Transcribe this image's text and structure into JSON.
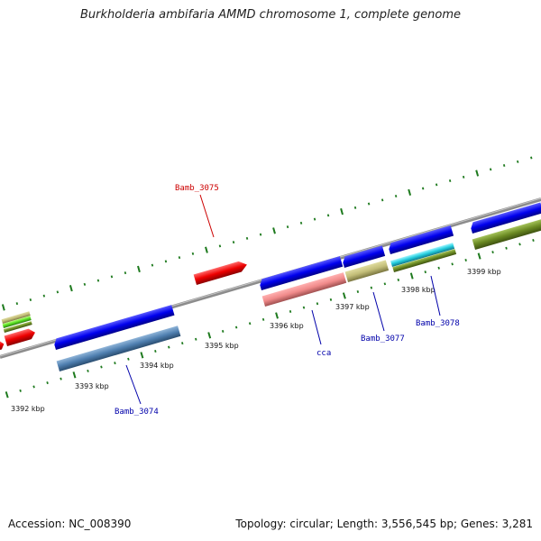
{
  "title": "Burkholderia ambifaria AMMD chromosome 1, complete genome",
  "footer": {
    "accession": "Accession: NC_008390",
    "topology": "Topology: circular; Length: 3,556,545 bp; Genes: 3,281"
  },
  "colors": {
    "backbone": "#8c8c8c",
    "ticks": "#1e7a1e",
    "label_red": "#cc0000",
    "label_blue": "#0000aa"
  },
  "kbp_labels": [
    "3392 kbp",
    "3393 kbp",
    "3394 kbp",
    "3395 kbp",
    "3396 kbp",
    "3397 kbp",
    "3398 kbp",
    "3399 kbp"
  ],
  "gene_labels": [
    {
      "id": "bamb3075",
      "text": "Bamb_3075",
      "color": "#cc0000"
    },
    {
      "id": "bamb3074",
      "text": "Bamb_3074",
      "color": "#0000aa"
    },
    {
      "id": "cca",
      "text": "cca",
      "color": "#0000aa"
    },
    {
      "id": "bamb3077",
      "text": "Bamb_3077",
      "color": "#0000aa"
    },
    {
      "id": "bamb3078",
      "text": "Bamb_3078",
      "color": "#0000aa"
    }
  ]
}
